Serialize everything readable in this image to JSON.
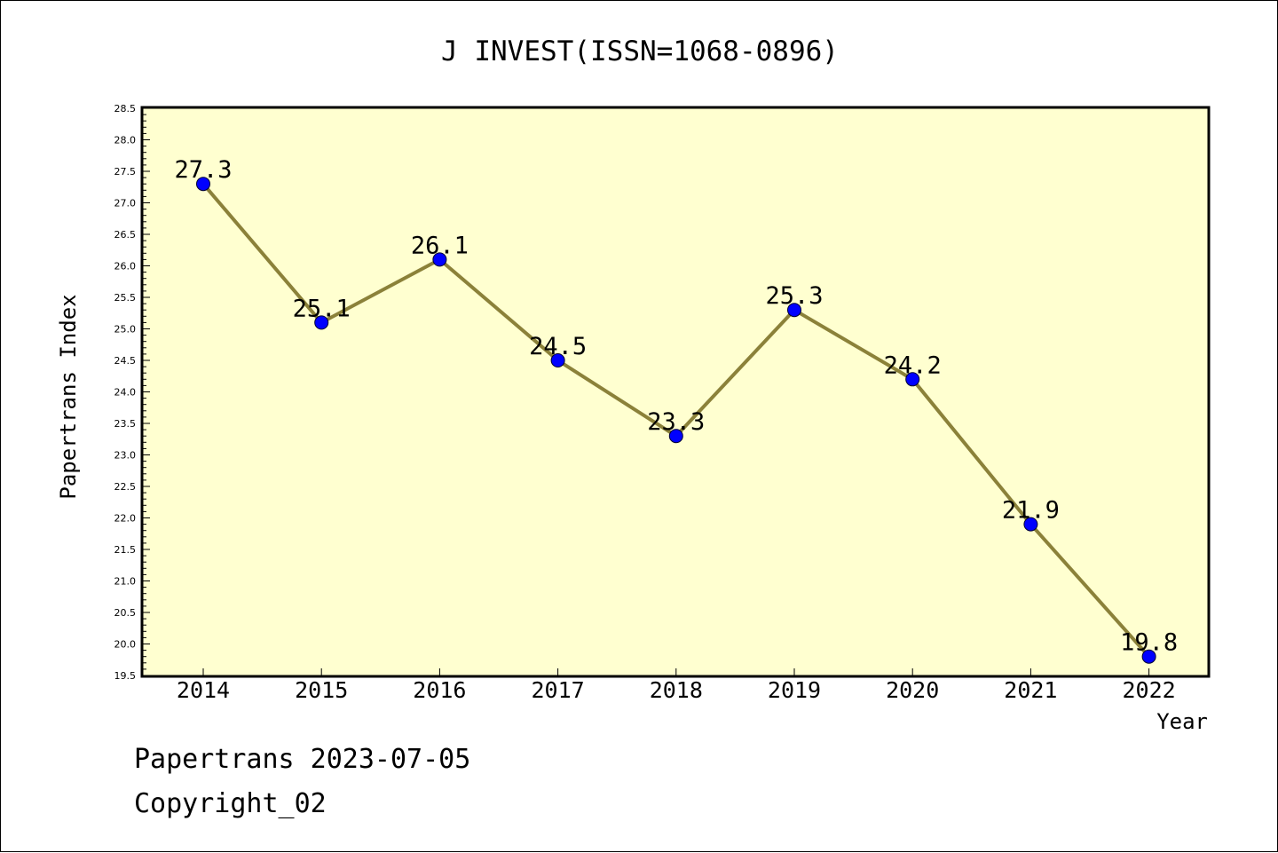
{
  "chart_data": {
    "type": "line",
    "title": "J INVEST(ISSN=1068-0896)",
    "xlabel": "Year",
    "ylabel": "Papertrans Index",
    "x": [
      "2014",
      "2015",
      "2016",
      "2017",
      "2018",
      "2019",
      "2020",
      "2021",
      "2022"
    ],
    "values": [
      27.3,
      25.1,
      26.1,
      24.5,
      23.3,
      25.3,
      24.2,
      21.9,
      19.8
    ],
    "data_labels": [
      "27.3",
      "25.1",
      "26.1",
      "24.5",
      "23.3",
      "25.3",
      "24.2",
      "21.9",
      "19.8"
    ],
    "ylim": [
      19.5,
      28.5
    ],
    "y_ticks": [
      "19.5",
      "20.0",
      "20.5",
      "21.0",
      "21.5",
      "22.0",
      "22.5",
      "23.0",
      "23.5",
      "24.0",
      "24.5",
      "25.0",
      "25.5",
      "26.0",
      "26.5",
      "27.0",
      "27.5",
      "28.0",
      "28.5"
    ],
    "grid": false,
    "colors": {
      "plot_background": "#ffffd0",
      "line": "#8b8139",
      "marker": "#0000ff"
    }
  },
  "footer": {
    "line1": "Papertrans 2023-07-05",
    "line2": "Copyright_02"
  }
}
